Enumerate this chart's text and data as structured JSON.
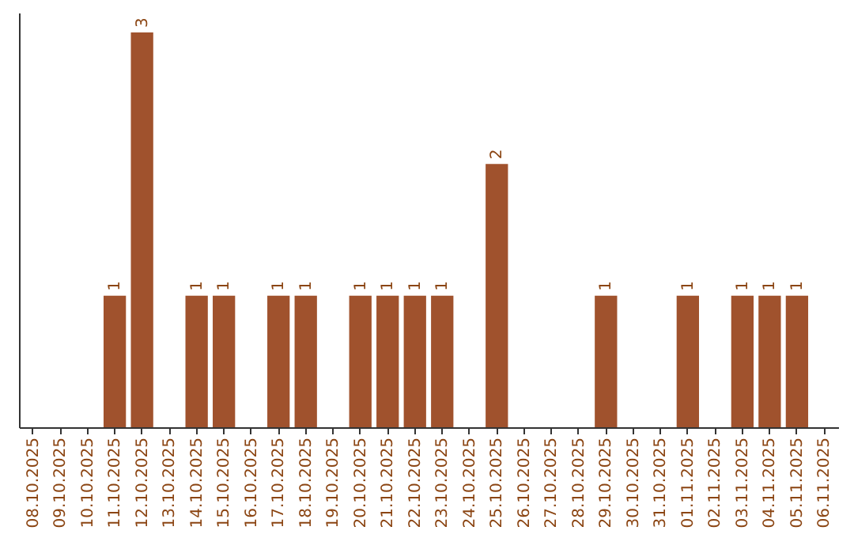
{
  "chart_data": {
    "type": "bar",
    "categories": [
      "08.10.2025",
      "09.10.2025",
      "10.10.2025",
      "11.10.2025",
      "12.10.2025",
      "13.10.2025",
      "14.10.2025",
      "15.10.2025",
      "16.10.2025",
      "17.10.2025",
      "18.10.2025",
      "19.10.2025",
      "20.10.2025",
      "21.10.2025",
      "22.10.2025",
      "23.10.2025",
      "24.10.2025",
      "25.10.2025",
      "26.10.2025",
      "27.10.2025",
      "28.10.2025",
      "29.10.2025",
      "30.10.2025",
      "31.10.2025",
      "01.11.2025",
      "02.11.2025",
      "03.11.2025",
      "04.11.2025",
      "05.11.2025",
      "06.11.2025"
    ],
    "values": [
      null,
      null,
      null,
      1,
      3,
      null,
      1,
      1,
      null,
      1,
      1,
      null,
      1,
      1,
      1,
      1,
      null,
      2,
      null,
      null,
      null,
      1,
      null,
      null,
      1,
      null,
      1,
      1,
      1,
      null
    ],
    "color": "#a0522d",
    "ylim": [
      0,
      3.15
    ],
    "data_labels": true,
    "tick_labels": "x",
    "grid": false
  }
}
